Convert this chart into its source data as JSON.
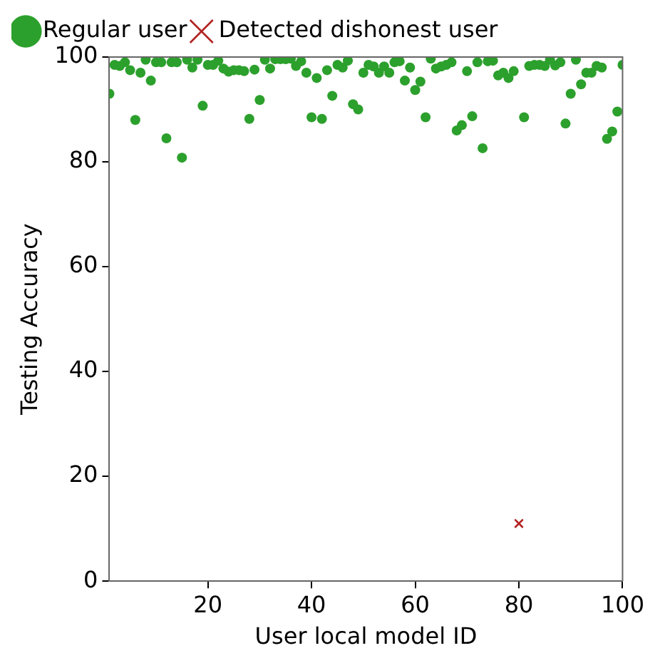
{
  "chart_data": {
    "type": "scatter",
    "xlabel": "User local model ID",
    "ylabel": "Testing Accuracy",
    "xlim": [
      1,
      100
    ],
    "xticks": [
      20,
      40,
      60,
      80,
      100
    ],
    "ylim": [
      0,
      100
    ],
    "yticks": [
      0,
      20,
      40,
      60,
      80,
      100
    ],
    "grid": false,
    "legend": "top left",
    "series": [
      {
        "name": "Regular user",
        "color": "#2ca02c",
        "marker": "circle",
        "x": [
          1,
          2,
          3,
          4,
          5,
          6,
          7,
          8,
          9,
          10,
          11,
          12,
          13,
          14,
          15,
          16,
          17,
          18,
          19,
          20,
          21,
          22,
          23,
          24,
          25,
          26,
          27,
          28,
          29,
          30,
          31,
          32,
          33,
          34,
          35,
          36,
          37,
          38,
          39,
          40,
          41,
          42,
          43,
          44,
          45,
          46,
          47,
          48,
          49,
          50,
          51,
          52,
          53,
          54,
          55,
          56,
          57,
          58,
          59,
          60,
          61,
          62,
          63,
          64,
          65,
          66,
          67,
          68,
          69,
          70,
          71,
          72,
          73,
          74,
          75,
          76,
          77,
          78,
          79,
          81,
          82,
          83,
          84,
          85,
          86,
          87,
          88,
          89,
          90,
          91,
          92,
          93,
          94,
          95,
          96,
          97,
          98,
          99,
          100
        ],
        "values": [
          93,
          98.5,
          98.3,
          99,
          97.5,
          88,
          97,
          99.5,
          95.5,
          99,
          99,
          84.5,
          99,
          99,
          80.8,
          99.5,
          98,
          99.5,
          90.7,
          98.5,
          98.5,
          99.3,
          97.8,
          97.2,
          97.5,
          97.5,
          97.3,
          88.2,
          97.6,
          91.8,
          99.5,
          97.8,
          99.6,
          99.6,
          99.6,
          99.7,
          98.3,
          99.2,
          97,
          88.5,
          96,
          88.2,
          97.5,
          92.6,
          98.5,
          98,
          99.3,
          91,
          90,
          97,
          98.5,
          98.2,
          97,
          98.2,
          97,
          99,
          99.2,
          95.5,
          98,
          93.7,
          95.3,
          88.5,
          99.7,
          97.8,
          98.2,
          98.5,
          99,
          86,
          87,
          97.3,
          88.7,
          99,
          82.6,
          99.2,
          99.3,
          96.5,
          97,
          96,
          97.3,
          88.5,
          98.3,
          98.5,
          98.5,
          98.3,
          99.5,
          98.4,
          99,
          87.3,
          93,
          99.5,
          94.8,
          97,
          97,
          98.3,
          98,
          84.4,
          85.8,
          89.6,
          98.5
        ]
      },
      {
        "name": "Detected dishonest user",
        "color": "#b22222",
        "marker": "cross",
        "x": [
          80
        ],
        "values": [
          11
        ]
      }
    ]
  }
}
